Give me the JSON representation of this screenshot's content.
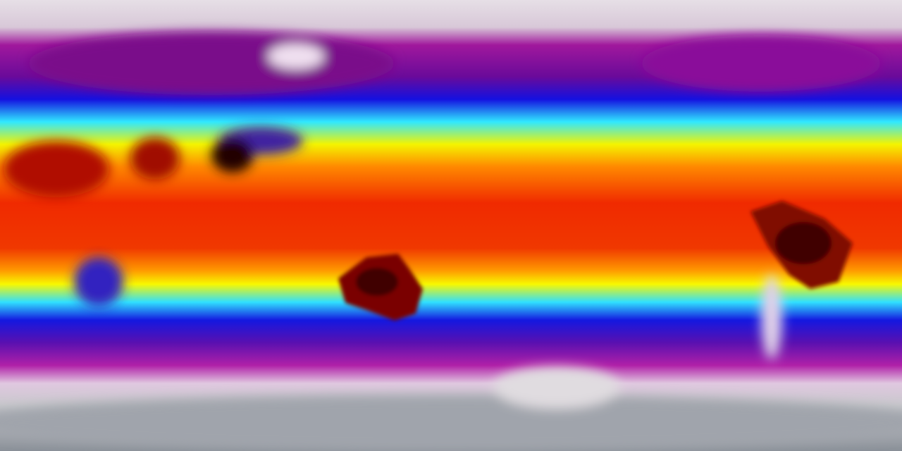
{
  "map": {
    "projection": "equirectangular",
    "type": "global surface temperature field",
    "colormap": [
      "#9aa0a8",
      "#e8dde6",
      "#b0109a",
      "#6a0090",
      "#1010e0",
      "#20e0ff",
      "#f0f000",
      "#ff9000",
      "#f02000",
      "#500000"
    ],
    "colors": {
      "polar": "#d8d0d8",
      "cold": "#9a10a0",
      "cool": "#1a20e0",
      "mild": "#30f0ff",
      "warm": "#ffff00",
      "hot": "#f03000",
      "hottest": "#600000"
    }
  }
}
